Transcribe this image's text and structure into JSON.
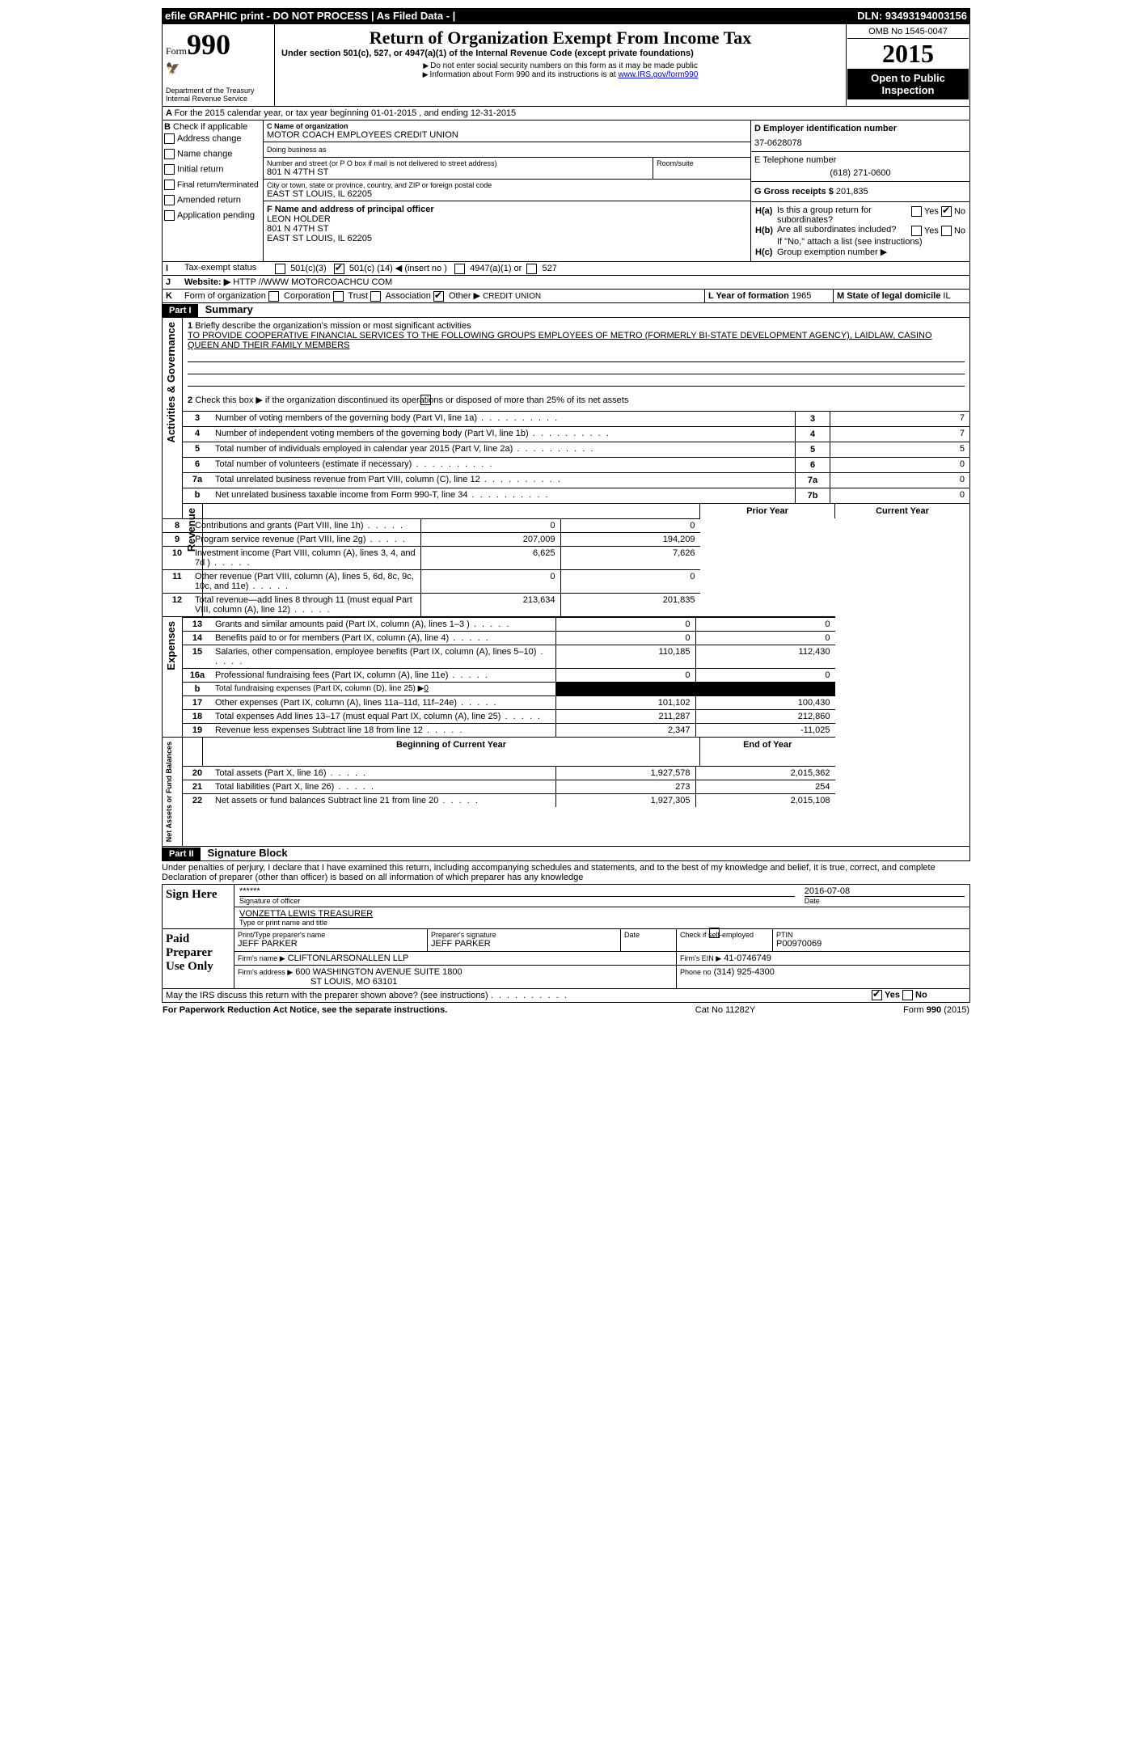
{
  "topbar": {
    "left": "efile GRAPHIC print - DO NOT PROCESS    | As Filed Data -  |",
    "right": "DLN: 93493194003156"
  },
  "header": {
    "form_label": "Form",
    "form_number": "990",
    "dept": "Department of the Treasury",
    "irs": "Internal Revenue Service",
    "title": "Return of Organization Exempt From Income Tax",
    "subtitle": "Under section 501(c), 527, or 4947(a)(1) of the Internal Revenue Code (except private foundations)",
    "note1": "Do not enter social security numbers on this form as it may be made public",
    "note2_pre": "Information about Form 990 and its instructions is at ",
    "note2_link": "www.IRS.gov/form990",
    "omb": "OMB No  1545-0047",
    "year": "2015",
    "inspection": "Open to Public Inspection"
  },
  "sectionA": {
    "line": "For the 2015 calendar year, or tax year beginning 01-01-2015     , and ending 12-31-2015"
  },
  "sectionB": {
    "heading": "Check if applicable",
    "opts": [
      "Address change",
      "Name change",
      "Initial return",
      "Final return/terminated",
      "Amended return",
      "Application pending"
    ]
  },
  "sectionC": {
    "name_label": "C Name of organization",
    "name": "MOTOR COACH EMPLOYEES CREDIT UNION",
    "dba_label": "Doing business as",
    "dba": "",
    "street_label": "Number and street (or P O  box if mail is not delivered to street address)",
    "room_label": "Room/suite",
    "street": "801 N 47TH ST",
    "city_label": "City or town, state or province, country, and ZIP or foreign postal code",
    "city": "EAST ST LOUIS, IL  62205"
  },
  "sectionD": {
    "label": "D Employer identification number",
    "value": "37-0628078"
  },
  "sectionE": {
    "label": "E Telephone number",
    "value": "(618) 271-0600"
  },
  "sectionG": {
    "label": "G Gross receipts $",
    "value": "201,835"
  },
  "sectionF": {
    "label": "F    Name and address of principal officer",
    "name": "LEON HOLDER",
    "street": "801 N 47TH ST",
    "city": "EAST ST LOUIS, IL  62205"
  },
  "sectionH": {
    "a": "Is this a group return for subordinates?",
    "b": "Are all subordinates included?",
    "b_note": "If \"No,\" attach a list  (see instructions)",
    "c": "Group exemption number ▶",
    "yes": "Yes",
    "no": "No"
  },
  "sectionI": {
    "label": "Tax-exempt status",
    "opt1": "501(c)(3)",
    "opt2_pre": "501(c) (",
    "opt2_num": "14",
    "opt2_post": ") ◀ (insert no )",
    "opt3": "4947(a)(1) or",
    "opt4": "527"
  },
  "sectionJ": {
    "label": "Website: ▶",
    "value": "HTTP //WWW MOTORCOACHCU COM"
  },
  "sectionK": {
    "label": "Form of organization",
    "opts": [
      "Corporation",
      "Trust",
      "Association",
      "Other ▶"
    ],
    "other_val": "CREDIT UNION",
    "L_label": "L Year of formation",
    "L_val": "1965",
    "M_label": "M State of legal domicile",
    "M_val": "IL"
  },
  "partI": {
    "label": "Part I",
    "title": "Summary",
    "q1_label": "Briefly describe the organization's mission or most significant activities",
    "q1_text": "TO PROVIDE COOPERATIVE FINANCIAL SERVICES TO THE FOLLOWING GROUPS  EMPLOYEES OF METRO (FORMERLY BI-STATE DEVELOPMENT AGENCY), LAIDLAW, CASINO QUEEN AND THEIR FAMILY MEMBERS",
    "q2": "Check this box ▶    if the organization discontinued its operations or disposed of more than 25% of its net assets",
    "lines_gov": [
      {
        "n": "3",
        "t": "Number of voting members of the governing body (Part VI, line 1a)",
        "box": "3",
        "v": "7"
      },
      {
        "n": "4",
        "t": "Number of independent voting members of the governing body (Part VI, line 1b)",
        "box": "4",
        "v": "7"
      },
      {
        "n": "5",
        "t": "Total number of individuals employed in calendar year 2015 (Part V, line 2a)",
        "box": "5",
        "v": "5"
      },
      {
        "n": "6",
        "t": "Total number of volunteers (estimate if necessary)",
        "box": "6",
        "v": "0"
      },
      {
        "n": "7a",
        "t": "Total unrelated business revenue from Part VIII, column (C), line 12",
        "box": "7a",
        "v": "0"
      },
      {
        "n": "b",
        "t": "Net unrelated business taxable income from Form 990-T, line 34",
        "box": "7b",
        "v": "0"
      }
    ],
    "col_prior": "Prior Year",
    "col_current": "Current Year",
    "revenue": [
      {
        "n": "8",
        "t": "Contributions and grants (Part VIII, line 1h)",
        "p": "0",
        "c": "0"
      },
      {
        "n": "9",
        "t": "Program service revenue (Part VIII, line 2g)",
        "p": "207,009",
        "c": "194,209"
      },
      {
        "n": "10",
        "t": "Investment income (Part VIII, column (A), lines 3, 4, and 7d )",
        "p": "6,625",
        "c": "7,626"
      },
      {
        "n": "11",
        "t": "Other revenue (Part VIII, column (A), lines 5, 6d, 8c, 9c, 10c, and 11e)",
        "p": "0",
        "c": "0"
      },
      {
        "n": "12",
        "t": "Total revenue—add lines 8 through 11 (must equal Part VIII, column (A), line 12)",
        "p": "213,634",
        "c": "201,835"
      }
    ],
    "expenses": [
      {
        "n": "13",
        "t": "Grants and similar amounts paid (Part IX, column (A), lines 1–3 )",
        "p": "0",
        "c": "0"
      },
      {
        "n": "14",
        "t": "Benefits paid to or for members (Part IX, column (A), line 4)",
        "p": "0",
        "c": "0"
      },
      {
        "n": "15",
        "t": "Salaries, other compensation, employee benefits (Part IX, column (A), lines 5–10)",
        "p": "110,185",
        "c": "112,430"
      },
      {
        "n": "16a",
        "t": "Professional fundraising fees (Part IX, column (A), line 11e)",
        "p": "0",
        "c": "0"
      },
      {
        "n": "b",
        "t": "Total fundraising expenses (Part IX, column (D), line 25) ▶",
        "p": "",
        "c": "",
        "fund": "0"
      },
      {
        "n": "17",
        "t": "Other expenses (Part IX, column (A), lines 11a–11d, 11f–24e)",
        "p": "101,102",
        "c": "100,430"
      },
      {
        "n": "18",
        "t": "Total expenses  Add lines 13–17 (must equal Part IX, column (A), line 25)",
        "p": "211,287",
        "c": "212,860"
      },
      {
        "n": "19",
        "t": "Revenue less expenses  Subtract line 18 from line 12",
        "p": "2,347",
        "c": "-11,025"
      }
    ],
    "col_begin": "Beginning of Current Year",
    "col_end": "End of Year",
    "netassets": [
      {
        "n": "20",
        "t": "Total assets (Part X, line 16)",
        "p": "1,927,578",
        "c": "2,015,362"
      },
      {
        "n": "21",
        "t": "Total liabilities (Part X, line 26)",
        "p": "273",
        "c": "254"
      },
      {
        "n": "22",
        "t": "Net assets or fund balances  Subtract line 21 from line 20",
        "p": "1,927,305",
        "c": "2,015,108"
      }
    ],
    "side_gov": "Activities & Governance",
    "side_rev": "Revenue",
    "side_exp": "Expenses",
    "side_net": "Net Assets or Fund Balances"
  },
  "partII": {
    "label": "Part II",
    "title": "Signature Block",
    "perjury": "Under penalties of perjury, I declare that I have examined this return, including accompanying schedules and statements, and to the best of my knowledge and belief, it is true, correct, and complete  Declaration of preparer (other than officer) is based on all information of which preparer has any knowledge",
    "sign_here": "Sign Here",
    "sig_stars": "******",
    "sig_of_officer": "Signature of officer",
    "date_label": "Date",
    "date_val": "2016-07-08",
    "officer_name": "VONZETTA LEWIS TREASURER",
    "type_name": "Type or print name and title",
    "paid": "Paid Preparer Use Only",
    "prep_name_label": "Print/Type preparer's name",
    "prep_name": "JEFF PARKER",
    "prep_sig_label": "Preparer's signature",
    "prep_sig": "JEFF PARKER",
    "prep_date_label": "Date",
    "check_if": "Check       if self-employed",
    "ptin_label": "PTIN",
    "ptin": "P00970069",
    "firm_name_label": "Firm's name      ▶",
    "firm_name": "CLIFTONLARSONALLEN LLP",
    "firm_ein_label": "Firm's EIN ▶",
    "firm_ein": "41-0746749",
    "firm_addr_label": "Firm's address ▶",
    "firm_addr1": "600 WASHINGTON AVENUE SUITE 1800",
    "firm_addr2": "ST LOUIS, MO  63101",
    "phone_label": "Phone no",
    "phone": "(314) 925-4300",
    "discuss": "May the IRS discuss this return with the preparer shown above? (see instructions)"
  },
  "footer": {
    "left": "For Paperwork Reduction Act Notice, see the separate instructions.",
    "mid": "Cat No  11282Y",
    "right": "Form 990 (2015)"
  }
}
